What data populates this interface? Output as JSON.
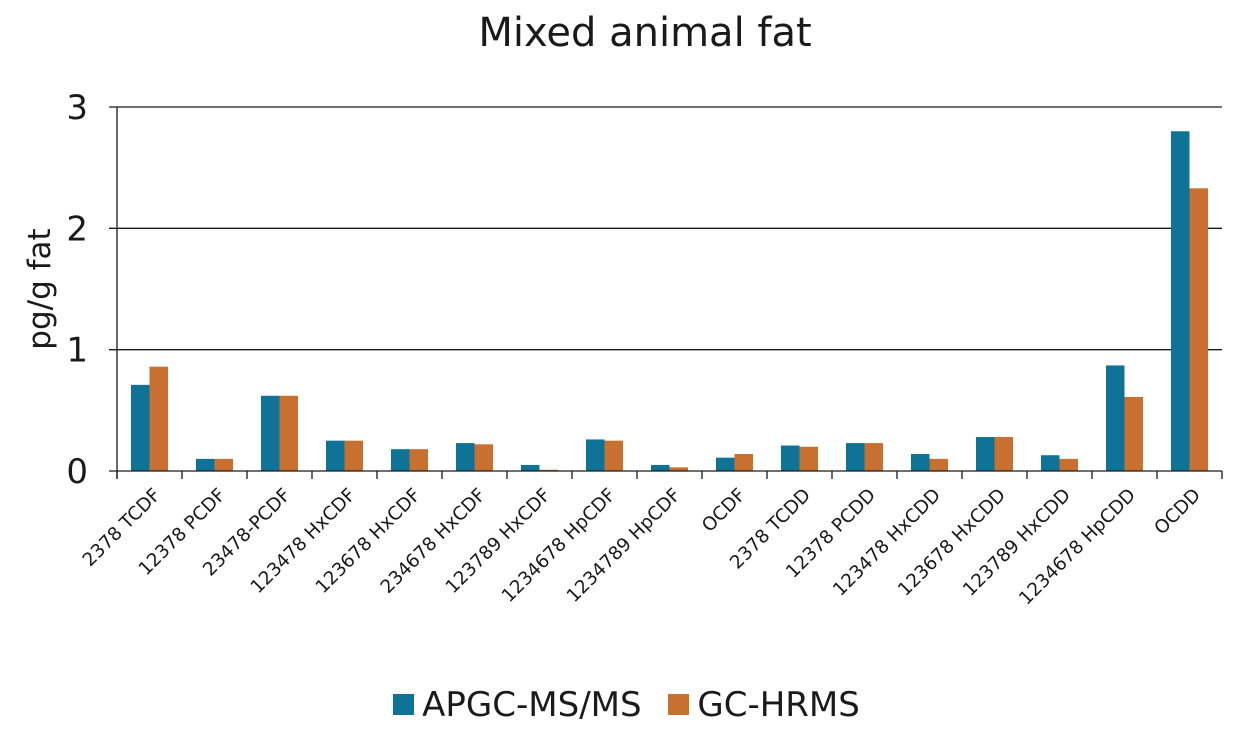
{
  "chart_data": {
    "type": "bar",
    "title": "Mixed animal fat",
    "xlabel": "",
    "ylabel": "pg/g fat",
    "ylim": [
      0,
      3
    ],
    "yticks": [
      "0",
      "1",
      "2",
      "3"
    ],
    "grid": true,
    "legend_position": "bottom",
    "categories": [
      "2378 TCDF",
      "12378 PCDF",
      "23478-PCDF",
      "123478 HxCDF",
      "123678 HxCDF",
      "234678 HxCDF",
      "123789 HxCDF",
      "1234678 HpCDF",
      "1234789 HpCDF",
      "OCDF",
      "2378 TCDD",
      "12378 PCDD",
      "123478 HxCDD",
      "123678 HxCDD",
      "123789 HxCDD",
      "1234678 HpCDD",
      "OCDD"
    ],
    "series": [
      {
        "name": "APGC-MS/MS",
        "color": "#0e7396",
        "values": [
          0.71,
          0.1,
          0.62,
          0.25,
          0.18,
          0.23,
          0.05,
          0.26,
          0.05,
          0.11,
          0.21,
          0.23,
          0.14,
          0.28,
          0.13,
          0.87,
          2.8
        ]
      },
      {
        "name": "GC-HRMS",
        "color": "#c8702f",
        "values": [
          0.86,
          0.1,
          0.62,
          0.25,
          0.18,
          0.22,
          0.01,
          0.25,
          0.03,
          0.14,
          0.2,
          0.23,
          0.1,
          0.28,
          0.1,
          0.61,
          2.33
        ]
      }
    ]
  }
}
